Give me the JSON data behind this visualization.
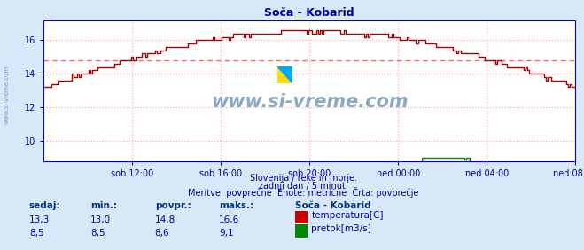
{
  "title": "Soča - Kobarid",
  "bg_color": "#d8e8f8",
  "plot_bg_color": "#ffffff",
  "title_color": "#000099",
  "grid_color": "#ffaaaa",
  "axis_color": "#0000cc",
  "text_color": "#0000aa",
  "watermark": "www.si-vreme.com",
  "subtitle_lines": [
    "Slovenija / reke in morje.",
    "zadnji dan / 5 minut.",
    "Meritve: povprečne  Enote: metrične  Črta: povprečje"
  ],
  "xtick_labels": [
    "sob 12:00",
    "sob 16:00",
    "sob 20:00",
    "ned 00:00",
    "ned 04:00",
    "ned 08:00"
  ],
  "xtick_positions": [
    0.1666,
    0.3333,
    0.5,
    0.6666,
    0.8333,
    1.0
  ],
  "ylim_min": 8.8,
  "ylim_max": 17.2,
  "yticks": [
    10,
    12,
    14,
    16
  ],
  "temp_color": "#aa0000",
  "flow_color": "#008800",
  "avg_line_color": "#ff6666",
  "avg_line_value": 14.8,
  "flow_avg_line_value": 8.6,
  "flow_avg_line_color": "#0000dd",
  "legend_title": "Soča - Kobarid",
  "legend_items": [
    {
      "label": "temperatura[C]",
      "color": "#cc0000"
    },
    {
      "label": "pretok[m3/s]",
      "color": "#008800"
    }
  ],
  "table_headers": [
    "sedaj:",
    "min.:",
    "povpr.:",
    "maks.:"
  ],
  "table_rows": [
    [
      "13,3",
      "13,0",
      "14,8",
      "16,6"
    ],
    [
      "8,5",
      "8,5",
      "8,6",
      "9,1"
    ]
  ],
  "n_points": 288
}
